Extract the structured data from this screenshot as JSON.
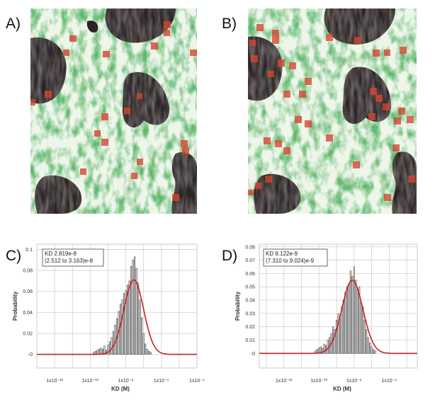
{
  "panels": {
    "a": {
      "letter": "A)"
    },
    "b": {
      "letter": "B)"
    },
    "c": {
      "letter": "C)"
    },
    "d": {
      "letter": "D)"
    }
  },
  "colors": {
    "background": "#ffffff",
    "tissue_green": "#2f8a3a",
    "dark_region": "#2a2222",
    "red_squares": "#d43a2a",
    "fit_curve": "#cc1f1f",
    "bars": "#555555",
    "grid": "#d0d0d0"
  },
  "chart_data": [
    {
      "panel": "C)",
      "type": "bar",
      "xscale": "log",
      "xlabel": "KD (M)",
      "ylabel": "Probability",
      "xtick_labels": [
        "1x10⁻¹²",
        "1x10⁻¹⁰",
        "1x10⁻⁸",
        "1x10⁻⁶",
        "1x10⁻⁴"
      ],
      "ytick_labels": [
        "-0",
        "0.02",
        "0.04",
        "0.06",
        "0.08",
        "0.1"
      ],
      "xlim_log10": [
        -13,
        -4
      ],
      "ylim": [
        -0.013,
        0.105
      ],
      "grid": true,
      "annotation": [
        "KD 2.819e-8",
        "(2.512 to 3.163)e-8"
      ],
      "fit": {
        "type": "gaussian_log",
        "center_log10": -7.55,
        "sigma_log10": 0.55,
        "peak": 0.071
      },
      "histogram": {
        "bin_width_log10": 0.06,
        "x_log10": [
          -9.8,
          -9.7,
          -9.6,
          -9.5,
          -9.4,
          -9.3,
          -9.2,
          -9.1,
          -9.0,
          -8.9,
          -8.8,
          -8.7,
          -8.6,
          -8.5,
          -8.4,
          -8.3,
          -8.2,
          -8.1,
          -8.0,
          -7.9,
          -7.8,
          -7.7,
          -7.6,
          -7.5,
          -7.4,
          -7.3,
          -7.2,
          -7.1,
          -7.0,
          -6.9,
          -6.8,
          -6.7,
          -6.6
        ],
        "values": [
          0.002,
          0.003,
          0.004,
          0.005,
          0.006,
          0.005,
          0.008,
          0.004,
          0.009,
          0.012,
          0.016,
          0.022,
          0.028,
          0.034,
          0.041,
          0.048,
          0.052,
          0.058,
          0.061,
          0.066,
          0.07,
          0.084,
          0.09,
          0.093,
          0.082,
          0.068,
          0.052,
          0.035,
          0.02,
          0.01,
          0.005,
          0.003,
          0.002
        ]
      }
    },
    {
      "panel": "D)",
      "type": "bar",
      "xscale": "log",
      "xlabel": "KD (M)",
      "ylabel": "Probability",
      "xtick_labels": [
        "1x10⁻¹²",
        "1x10⁻¹⁰",
        "1x10⁻⁸",
        "1x10⁻⁶"
      ],
      "ytick_labels": [
        "-0",
        "0.01",
        "0.02",
        "0.03",
        "0.04",
        "0.05",
        "0.06",
        "0.07",
        "0.08"
      ],
      "xlim_log10": [
        -13.4,
        -4.4
      ],
      "ylim": [
        -0.011,
        0.082
      ],
      "grid": true,
      "annotation": [
        "KD 8.122e-9",
        "(7.310 to 9.024)e-9"
      ],
      "fit": {
        "type": "gaussian_log",
        "center_log10": -8.1,
        "sigma_log10": 0.6,
        "peak": 0.055
      },
      "histogram": {
        "bin_width_log10": 0.06,
        "x_log10": [
          -10.2,
          -10.1,
          -10.0,
          -9.9,
          -9.8,
          -9.7,
          -9.6,
          -9.5,
          -9.4,
          -9.3,
          -9.2,
          -9.1,
          -9.0,
          -8.9,
          -8.8,
          -8.7,
          -8.6,
          -8.5,
          -8.4,
          -8.3,
          -8.2,
          -8.1,
          -8.0,
          -7.9,
          -7.8,
          -7.7,
          -7.6,
          -7.5,
          -7.4,
          -7.3,
          -7.2,
          -7.1,
          -7.0,
          -6.9,
          -6.8
        ],
        "values": [
          0.002,
          0.003,
          0.004,
          0.005,
          0.004,
          0.007,
          0.006,
          0.01,
          0.012,
          0.015,
          0.02,
          0.018,
          0.025,
          0.03,
          0.026,
          0.035,
          0.04,
          0.046,
          0.05,
          0.052,
          0.062,
          0.058,
          0.065,
          0.055,
          0.048,
          0.05,
          0.038,
          0.035,
          0.025,
          0.018,
          0.012,
          0.008,
          0.005,
          0.003,
          0.002
        ]
      }
    }
  ]
}
